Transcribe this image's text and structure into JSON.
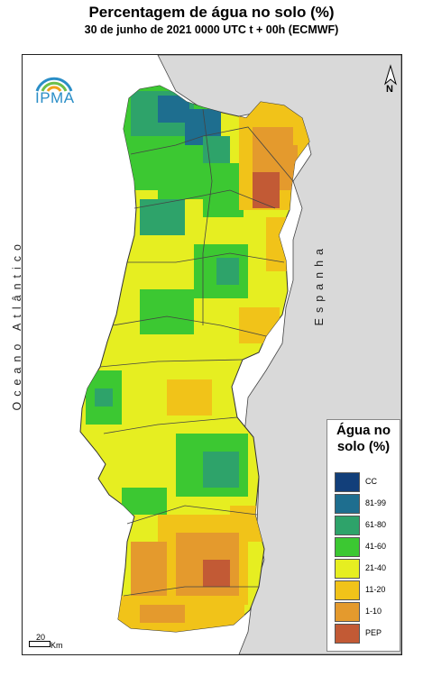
{
  "title": "Percentagem de água no solo (%)",
  "subtitle": "30 de junho de 2021 0000 UTC t + 00h (ECMWF)",
  "logo": {
    "text": "IPMA",
    "icon": "ipma-logo-icon",
    "color": "#2a8ec7"
  },
  "north_arrow": {
    "label": "N",
    "icon": "north-arrow-icon"
  },
  "labels": {
    "ocean": "Oceano Atlântico",
    "spain": "Espanha"
  },
  "legend": {
    "title_line1": "Água no",
    "title_line2": "solo (%)",
    "items": [
      {
        "label": "CC",
        "color": "#123f7a"
      },
      {
        "label": "81-99",
        "color": "#1e6e8f"
      },
      {
        "label": "61-80",
        "color": "#2ea36a"
      },
      {
        "label": "41-60",
        "color": "#3cc832"
      },
      {
        "label": "21-40",
        "color": "#e6ee21"
      },
      {
        "label": "11-20",
        "color": "#f1c319"
      },
      {
        "label": "1-10",
        "color": "#e49a2d"
      },
      {
        "label": "PEP",
        "color": "#c25a35"
      }
    ]
  },
  "scale_bar": {
    "value": "20",
    "unit": "Km"
  },
  "colors": {
    "land_outside": "#d9d9d9",
    "sea": "#ffffff",
    "border": "#333333"
  }
}
